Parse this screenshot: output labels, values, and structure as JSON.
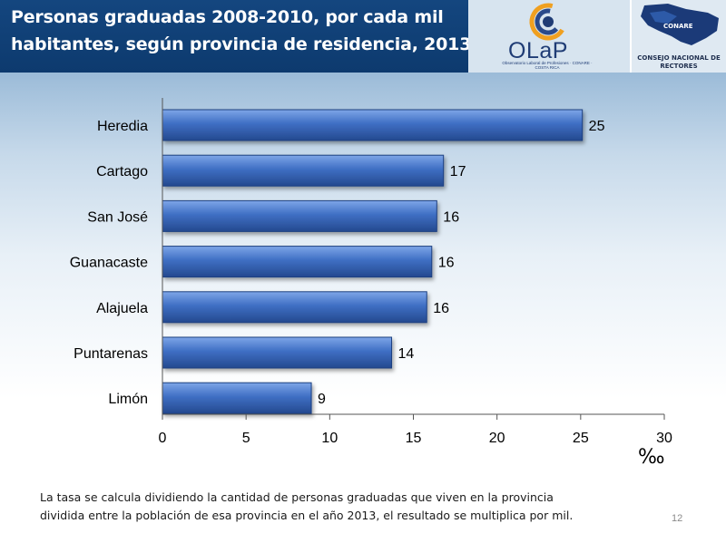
{
  "header": {
    "title_line1": "Personas graduadas 2008-2010, por cada mil",
    "title_line2": "habitantes, según provincia de residencia, 2013",
    "olap_logo_text": "OLaP",
    "olap_logo_subtext": "Observatorio Laboral de Profesiones · CONARE · COSTA RICA",
    "conare_logo_tag": "CONARE",
    "conare_logo_name": "CONSEJO NACIONAL DE RECTORES"
  },
  "chart_data": {
    "type": "bar",
    "orientation": "horizontal",
    "title": "Personas graduadas 2008-2010, por cada mil habitantes, según provincia de residencia, 2013",
    "categories": [
      "Heredia",
      "Cartago",
      "San José",
      "Guanacaste",
      "Alajuela",
      "Puntarenas",
      "Limón"
    ],
    "values": [
      25,
      17,
      16,
      16,
      16,
      14,
      9
    ],
    "plotted_values": [
      25.1,
      16.8,
      16.4,
      16.1,
      15.8,
      13.7,
      8.9
    ],
    "xlabel": "‰",
    "xlim": [
      0,
      30
    ],
    "xticks": [
      0,
      5,
      10,
      15,
      20,
      25,
      30
    ],
    "grid": false,
    "bar_color": "#3f6fc4"
  },
  "footnote": {
    "line1": "La tasa se calcula dividiendo la cantidad  de personas graduadas que viven en la provincia",
    "line2": "dividida entre la población de esa provincia en el año 2013, el resultado se multiplica por mil."
  },
  "page_number": "12"
}
